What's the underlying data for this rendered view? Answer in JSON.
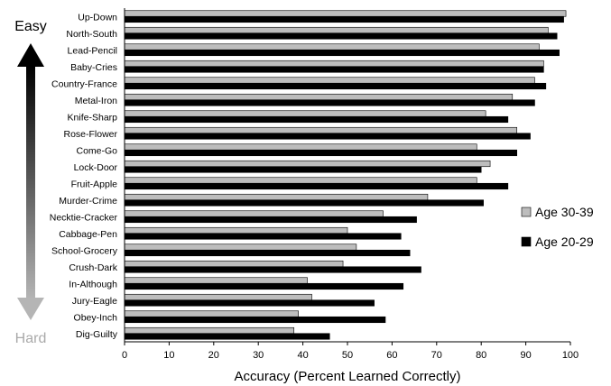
{
  "chart_data": {
    "type": "bar",
    "orientation": "horizontal",
    "categories": [
      "Up-Down",
      "North-South",
      "Lead-Pencil",
      "Baby-Cries",
      "Country-France",
      "Metal-Iron",
      "Knife-Sharp",
      "Rose-Flower",
      "Come-Go",
      "Lock-Door",
      "Fruit-Apple",
      "Murder-Crime",
      "Necktie-Cracker",
      "Cabbage-Pen",
      "School-Grocery",
      "Crush-Dark",
      "In-Although",
      "Jury-Eagle",
      "Obey-Inch",
      "Dig-Guilty"
    ],
    "series": [
      {
        "name": "Age 30-39",
        "color": "#bdbdbd",
        "values": [
          99,
          95,
          93,
          94,
          92,
          87,
          81,
          88,
          79,
          82,
          79,
          68,
          58,
          50,
          52,
          49,
          41,
          42,
          39,
          38
        ]
      },
      {
        "name": "Age 20-29",
        "color": "#000000",
        "values": [
          98.5,
          97,
          97.5,
          94,
          94.5,
          92,
          86,
          91,
          88,
          80,
          86,
          80.5,
          65.5,
          62,
          64,
          66.5,
          62.5,
          56,
          58.5,
          46
        ]
      }
    ],
    "xlabel": "Accuracy (Percent Learned Correctly)",
    "xlim": [
      0,
      100
    ],
    "xticks": [
      0,
      10,
      20,
      30,
      40,
      50,
      60,
      70,
      80,
      90,
      100
    ],
    "grid": false,
    "legend_position": "right",
    "difficulty_axis": {
      "top_label": "Easy",
      "bottom_label": "Hard"
    }
  }
}
